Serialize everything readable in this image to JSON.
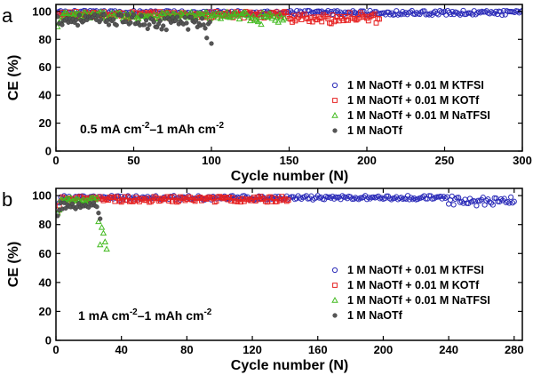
{
  "chart_data": [
    {
      "type": "scatter",
      "panel_label": "a",
      "xlabel": "Cycle number (N)",
      "ylabel": "CE (%)",
      "xlim": [
        0,
        300
      ],
      "ylim": [
        0,
        105
      ],
      "xticks": [
        "0",
        "50",
        "100",
        "150",
        "200",
        "250",
        "300"
      ],
      "yticks": [
        "0",
        "20",
        "40",
        "60",
        "80",
        "100"
      ],
      "xtick_values": [
        0,
        50,
        100,
        150,
        200,
        250,
        300
      ],
      "ytick_values": [
        0,
        20,
        40,
        60,
        80,
        100
      ],
      "annotation": {
        "text": "0.5 mA cm",
        "sup1": "-2",
        "mid": "–1 mAh cm",
        "sup2": "-2"
      },
      "legend_position": "bottom-right",
      "series": [
        {
          "name": "1 M NaOTf + 0.01 M KTFSI",
          "marker": "circle",
          "color": "#2b2bb8",
          "cycles": 300,
          "base": 99.0,
          "noise": 1.6
        },
        {
          "name": "1 M NaOTf + 0.01 M KOTf",
          "marker": "square",
          "color": "#e62222",
          "cycles": 208,
          "base": 97.5,
          "noise": 2.5,
          "tail_drop": [
            [
              150,
              208,
              4.5
            ]
          ]
        },
        {
          "name": "1 M NaOTf + 0.01 M NaTFSI",
          "marker": "triangle",
          "color": "#44bb22",
          "cycles": 147,
          "base": 97.0,
          "noise": 2.5,
          "start": [
            [
              1,
              89
            ],
            [
              2,
              92
            ],
            [
              3,
              93
            ]
          ],
          "tail_drop": [
            [
              125,
              147,
              5.0
            ]
          ]
        },
        {
          "name": "1 M NaOTf",
          "marker": "dot",
          "color": "#555555",
          "cycles": 100,
          "base": 94.0,
          "noise": 4.0,
          "tail_drop": [
            [
              50,
              100,
              4.0
            ]
          ],
          "end": [
            [
              97,
              81
            ],
            [
              100,
              77
            ]
          ]
        }
      ]
    },
    {
      "type": "scatter",
      "panel_label": "b",
      "xlabel": "Cycle number (N)",
      "ylabel": "CE (%)",
      "xlim": [
        0,
        285
      ],
      "ylim": [
        0,
        105
      ],
      "xticks": [
        "0",
        "40",
        "80",
        "120",
        "160",
        "200",
        "240",
        "280"
      ],
      "yticks": [
        "0",
        "20",
        "40",
        "60",
        "80",
        "100"
      ],
      "xtick_values": [
        0,
        40,
        80,
        120,
        160,
        200,
        240,
        280
      ],
      "ytick_values": [
        0,
        20,
        40,
        60,
        80,
        100
      ],
      "annotation": {
        "text": "1 mA cm",
        "sup1": "-2",
        "mid": "–1 mAh cm",
        "sup2": "-2"
      },
      "legend_position": "bottom-right",
      "series": [
        {
          "name": "1 M NaOTf + 0.01 M KTFSI",
          "marker": "circle",
          "color": "#2b2bb8",
          "cycles": 280,
          "base": 98.5,
          "noise": 1.5,
          "start": [
            [
              1,
              90
            ],
            [
              2,
              95
            ]
          ],
          "dips": [
            [
              240,
              280,
              5.0
            ]
          ]
        },
        {
          "name": "1 M NaOTf + 0.01 M KOTf",
          "marker": "square",
          "color": "#e62222",
          "cycles": 142,
          "base": 97.5,
          "noise": 2.0,
          "start": [
            [
              1,
              88
            ],
            [
              2,
              93
            ]
          ]
        },
        {
          "name": "1 M NaOTf + 0.01 M NaTFSI",
          "marker": "triangle",
          "color": "#44bb22",
          "cycles": 31,
          "base": 97.0,
          "noise": 1.5,
          "start": [
            [
              1,
              88
            ],
            [
              2,
              90
            ]
          ],
          "end": [
            [
              26,
              82
            ],
            [
              27,
              66
            ],
            [
              28,
              78
            ],
            [
              29,
              74
            ],
            [
              30,
              68
            ],
            [
              31,
              63
            ]
          ]
        },
        {
          "name": "1 M NaOTf",
          "marker": "dot",
          "color": "#555555",
          "cycles": 27,
          "base": 93.0,
          "noise": 2.5,
          "start": [
            [
              1,
              86
            ],
            [
              2,
              90
            ]
          ],
          "end": [
            [
              26,
              88
            ],
            [
              27,
              84
            ]
          ]
        }
      ]
    }
  ]
}
